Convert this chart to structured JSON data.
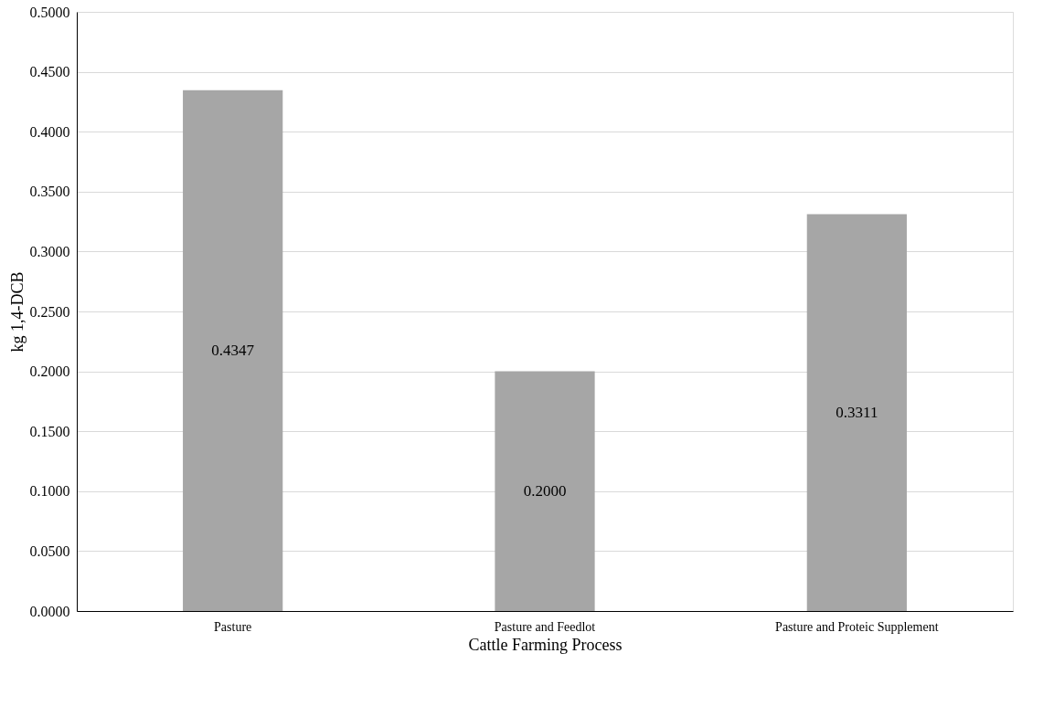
{
  "chart_data": {
    "type": "bar",
    "xlabel": "Cattle Farming Process",
    "ylabel": "kg 1,4-DCB",
    "categories": [
      "Pasture",
      "Pasture and Feedlot",
      "Pasture and Proteic Supplement"
    ],
    "values": [
      0.4347,
      0.2,
      0.3311
    ],
    "color": "#a6a6a6",
    "value_labels": [
      "0.4347",
      "0.2000",
      "0.3311"
    ],
    "ylim": [
      0,
      0.5
    ],
    "yticks": [
      {
        "value": 0,
        "label": "0.0000"
      },
      {
        "value": 0.05,
        "label": "0.0500"
      },
      {
        "value": 0.1,
        "label": "0.1000"
      },
      {
        "value": 0.15,
        "label": "0.1500"
      },
      {
        "value": 0.2,
        "label": "0.2000"
      },
      {
        "value": 0.25,
        "label": "0.2500"
      },
      {
        "value": 0.3,
        "label": "0.3000"
      },
      {
        "value": 0.35,
        "label": "0.3500"
      },
      {
        "value": 0.4,
        "label": "0.4000"
      },
      {
        "value": 0.45,
        "label": "0.4500"
      },
      {
        "value": 0.5,
        "label": "0.5000"
      }
    ],
    "grid": "y"
  }
}
